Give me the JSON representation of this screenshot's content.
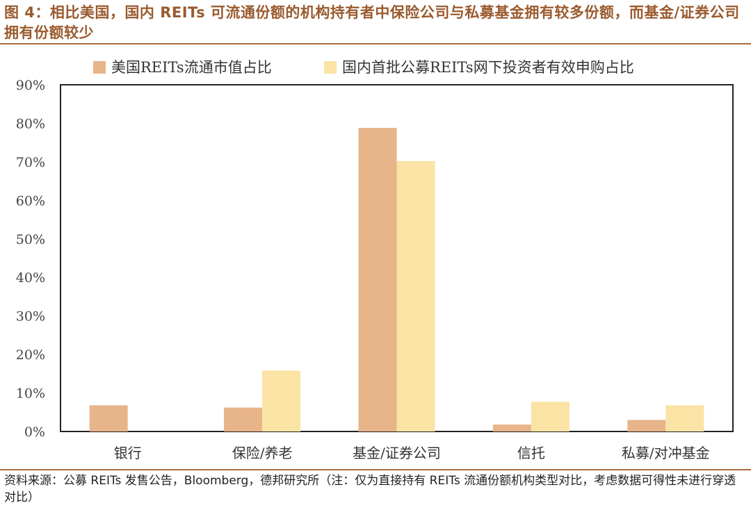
{
  "figure": {
    "title": "图 4：相比美国，国内 REITs 可流通份额的机构持有者中保险公司与私募基金拥有较多份额，而基金/证券公司拥有份额较少",
    "source": "资料来源：公募 REITs 发售公告，Bloomberg，德邦研究所（注：仅为直接持有 REITs 流通份额机构类型对比，考虑数据可得性未进行穿透对比）"
  },
  "colors": {
    "us": "#e8b48a",
    "cn": "#fae3a4",
    "title": "#9a5a2e",
    "rule": "#a86a3c"
  },
  "chart_data": {
    "type": "bar",
    "categories": [
      "银行",
      "保险/养老",
      "基金/证券公司",
      "信托",
      "私募/对冲基金"
    ],
    "series": [
      {
        "name": "美国REITs流通市值占比",
        "values": [
          6.8,
          6.2,
          78.8,
          1.8,
          3.0
        ]
      },
      {
        "name": "国内首批公募REITs网下投资者有效申购占比",
        "values": [
          0,
          15.8,
          70.2,
          7.7,
          6.8
        ]
      }
    ],
    "ylim": [
      0,
      90
    ],
    "yticks": [
      "0%",
      "10%",
      "20%",
      "30%",
      "40%",
      "50%",
      "60%",
      "70%",
      "80%",
      "90%"
    ],
    "legend_position": "top",
    "grid": false
  }
}
